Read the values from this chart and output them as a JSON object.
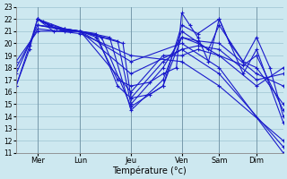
{
  "xlabel": "Température (°c)",
  "ylim": [
    11,
    23
  ],
  "yticks": [
    11,
    12,
    13,
    14,
    15,
    16,
    17,
    18,
    19,
    20,
    21,
    22,
    23
  ],
  "day_labels": [
    "Mer",
    "Lun",
    "Jeu",
    "Ven",
    "Sam",
    "Dim"
  ],
  "day_positions": [
    0.08,
    0.24,
    0.43,
    0.62,
    0.76,
    0.9
  ],
  "bg_color": "#cde8f0",
  "grid_color": "#a8ccd8",
  "line_color": "#1a1acc",
  "figsize": [
    3.2,
    2.0
  ],
  "dpi": 100,
  "series": [
    {
      "x": [
        0.0,
        0.05,
        0.08,
        0.1,
        0.13,
        0.18,
        0.24,
        0.3,
        0.38,
        0.43,
        0.5,
        0.55,
        0.6,
        0.62,
        0.65,
        0.68,
        0.72,
        0.76,
        0.8,
        0.85,
        0.9,
        0.95,
        1.0
      ],
      "y": [
        16.5,
        19.5,
        22.0,
        21.8,
        21.5,
        21.2,
        21.0,
        20.5,
        17.0,
        16.5,
        16.8,
        17.5,
        18.0,
        22.5,
        21.5,
        20.5,
        18.5,
        22.0,
        20.0,
        18.5,
        20.5,
        18.0,
        14.0
      ]
    },
    {
      "x": [
        0.0,
        0.05,
        0.08,
        0.12,
        0.18,
        0.24,
        0.3,
        0.38,
        0.43,
        0.5,
        0.55,
        0.62,
        0.68,
        0.76,
        0.85,
        0.9,
        1.0
      ],
      "y": [
        16.5,
        19.8,
        22.0,
        21.5,
        21.0,
        21.0,
        20.8,
        16.5,
        15.5,
        15.8,
        16.5,
        21.5,
        20.8,
        22.0,
        17.5,
        19.5,
        13.5
      ]
    },
    {
      "x": [
        0.08,
        0.14,
        0.24,
        0.32,
        0.43,
        0.55,
        0.62,
        0.68,
        0.76,
        0.85,
        0.9,
        1.0
      ],
      "y": [
        22.0,
        21.0,
        21.0,
        20.5,
        14.8,
        16.5,
        20.5,
        20.0,
        19.0,
        18.2,
        19.0,
        14.5
      ]
    },
    {
      "x": [
        0.08,
        0.15,
        0.24,
        0.35,
        0.43,
        0.55,
        0.62,
        0.72,
        0.76,
        0.85,
        0.9,
        1.0
      ],
      "y": [
        22.0,
        21.2,
        21.0,
        20.5,
        14.5,
        17.0,
        21.0,
        19.5,
        21.5,
        18.5,
        18.0,
        15.0
      ]
    },
    {
      "x": [
        0.08,
        0.18,
        0.24,
        0.38,
        0.43,
        0.55,
        0.62,
        0.68,
        0.76,
        0.9,
        1.0
      ],
      "y": [
        22.0,
        21.2,
        21.0,
        20.2,
        15.0,
        18.0,
        20.5,
        20.2,
        20.0,
        17.5,
        16.5
      ]
    },
    {
      "x": [
        0.08,
        0.2,
        0.24,
        0.4,
        0.43,
        0.55,
        0.62,
        0.68,
        0.76,
        0.9,
        1.0
      ],
      "y": [
        21.5,
        21.0,
        21.0,
        20.0,
        15.5,
        18.5,
        19.5,
        19.8,
        19.5,
        17.0,
        17.5
      ]
    },
    {
      "x": [
        0.08,
        0.24,
        0.43,
        0.55,
        0.62,
        0.68,
        0.76,
        0.9,
        1.0
      ],
      "y": [
        21.5,
        21.0,
        16.0,
        19.0,
        19.0,
        19.5,
        19.0,
        16.5,
        18.0
      ]
    },
    {
      "x": [
        0.0,
        0.08,
        0.24,
        0.43,
        0.62,
        0.76,
        1.0
      ],
      "y": [
        18.5,
        21.0,
        21.0,
        18.5,
        20.0,
        18.0,
        11.0
      ]
    },
    {
      "x": [
        0.0,
        0.08,
        0.24,
        0.43,
        0.62,
        0.76,
        1.0
      ],
      "y": [
        17.5,
        21.5,
        21.0,
        17.5,
        19.5,
        17.5,
        11.5
      ]
    },
    {
      "x": [
        0.0,
        0.08,
        0.24,
        0.43,
        0.62,
        0.76,
        1.0
      ],
      "y": [
        18.0,
        21.2,
        20.8,
        19.0,
        18.5,
        16.5,
        12.0
      ]
    }
  ]
}
